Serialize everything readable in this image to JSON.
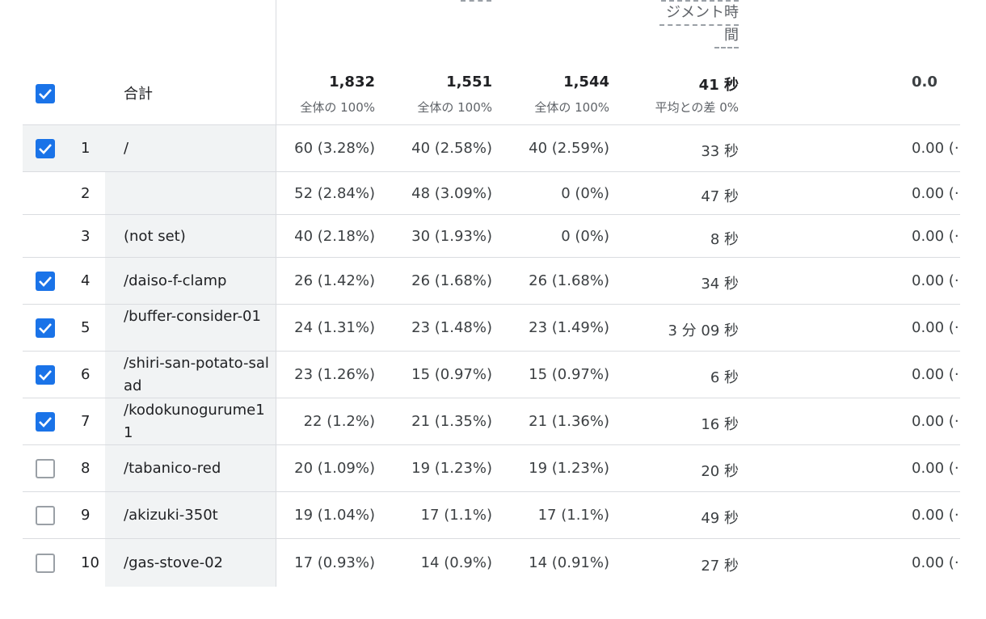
{
  "header": {
    "col4_fragment_line1": "ジメント時",
    "col4_fragment_line2": "間"
  },
  "total": {
    "label": "合計",
    "checked": true,
    "c1_main": "1,832",
    "c1_sub": "全体の 100%",
    "c2_main": "1,551",
    "c2_sub": "全体の 100%",
    "c3_main": "1,544",
    "c3_sub": "全体の 100%",
    "c4_main": "41 秒",
    "c4_sub": "平均との差 0%",
    "c5_main": "0.0"
  },
  "rows": [
    {
      "idx": "1",
      "page": "/",
      "checked": true,
      "shaded": true,
      "c1": "60 (3.28%)",
      "c2": "40 (2.58%)",
      "c3": "40 (2.59%)",
      "c4": "33 秒",
      "c5": "0.00 (·"
    },
    {
      "idx": "2",
      "page": "",
      "checked": null,
      "shaded": false,
      "c1": "52 (2.84%)",
      "c2": "48 (3.09%)",
      "c3": "0 (0%)",
      "c4": "47 秒",
      "c5": "0.00 (·"
    },
    {
      "idx": "3",
      "page": "(not set)",
      "checked": null,
      "shaded": false,
      "c1": "40 (2.18%)",
      "c2": "30 (1.93%)",
      "c3": "0 (0%)",
      "c4": "8 秒",
      "c5": "0.00 (·"
    },
    {
      "idx": "4",
      "page": "/daiso-f-clamp",
      "checked": true,
      "shaded": false,
      "c1": "26 (1.42%)",
      "c2": "26 (1.68%)",
      "c3": "26 (1.68%)",
      "c4": "34 秒",
      "c5": "0.00 (·"
    },
    {
      "idx": "5",
      "page": "/buffer-consider-01",
      "checked": true,
      "shaded": false,
      "c1": "24 (1.31%)",
      "c2": "23 (1.48%)",
      "c3": "23 (1.49%)",
      "c4": "3 分 09 秒",
      "c5": "0.00 (·"
    },
    {
      "idx": "6",
      "page": "/shiri-san-potato-salad",
      "checked": true,
      "shaded": false,
      "c1": "23 (1.26%)",
      "c2": "15 (0.97%)",
      "c3": "15 (0.97%)",
      "c4": "6 秒",
      "c5": "0.00 (·"
    },
    {
      "idx": "7",
      "page": "/kodokunogurume11",
      "checked": true,
      "shaded": false,
      "c1": "22 (1.2%)",
      "c2": "21 (1.35%)",
      "c3": "21 (1.36%)",
      "c4": "16 秒",
      "c5": "0.00 (·"
    },
    {
      "idx": "8",
      "page": "/tabanico-red",
      "checked": false,
      "shaded": false,
      "c1": "20 (1.09%)",
      "c2": "19 (1.23%)",
      "c3": "19 (1.23%)",
      "c4": "20 秒",
      "c5": "0.00 (·"
    },
    {
      "idx": "9",
      "page": "/akizuki-350t",
      "checked": false,
      "shaded": false,
      "c1": "19 (1.04%)",
      "c2": "17 (1.1%)",
      "c3": "17 (1.1%)",
      "c4": "49 秒",
      "c5": "0.00 (·"
    },
    {
      "idx": "10",
      "page": "/gas-stove-02",
      "checked": false,
      "shaded": false,
      "c1": "17 (0.93%)",
      "c2": "14 (0.9%)",
      "c3": "14 (0.91%)",
      "c4": "27 秒",
      "c5": "0.00 (·"
    }
  ]
}
